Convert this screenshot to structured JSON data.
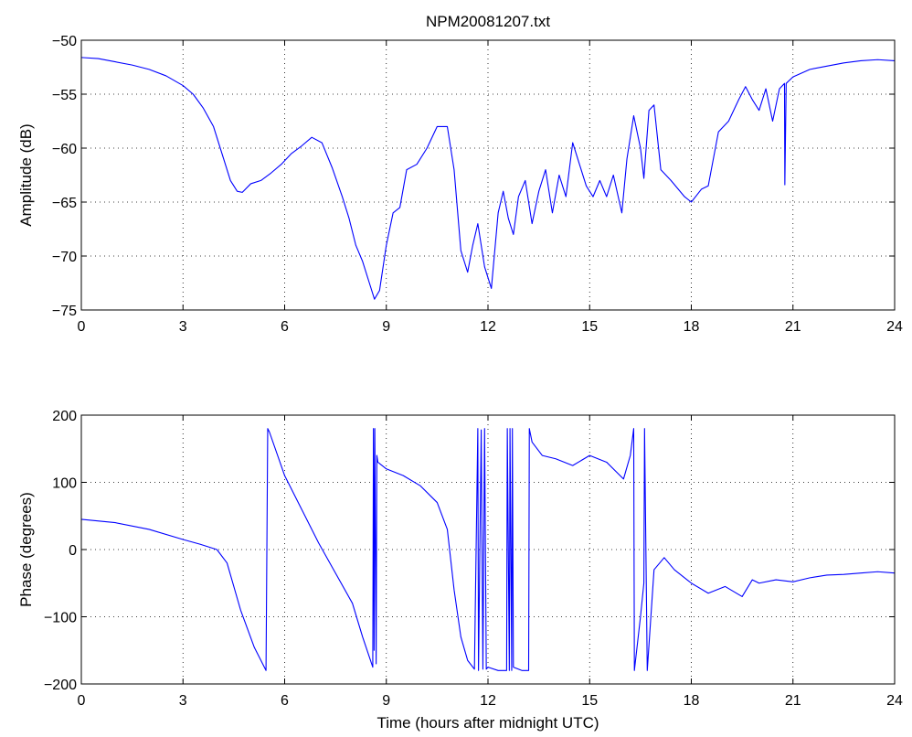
{
  "title": "NPM20081207.txt",
  "chart_data": [
    {
      "type": "line",
      "title": "NPM20081207.txt",
      "xlabel": "",
      "ylabel": "Amplitude (dB)",
      "xlim": [
        0,
        24
      ],
      "ylim": [
        -75,
        -50
      ],
      "xticks": [
        0,
        3,
        6,
        9,
        12,
        15,
        18,
        21,
        24
      ],
      "yticks": [
        -75,
        -70,
        -65,
        -60,
        -55,
        -50
      ],
      "grid": true,
      "line_color": "#0000ff",
      "series": [
        {
          "x": [
            0,
            0.5,
            1,
            1.5,
            2,
            2.5,
            3,
            3.3,
            3.6,
            3.9,
            4.2,
            4.4,
            4.6,
            4.75,
            5,
            5.3,
            5.6,
            5.9,
            6.2,
            6.5,
            6.8,
            7.1,
            7.4,
            7.7,
            7.9,
            8.1,
            8.3,
            8.5,
            8.65,
            8.8,
            9,
            9.2,
            9.4,
            9.6,
            9.9,
            10.2,
            10.5,
            10.8,
            11,
            11.2,
            11.4,
            11.55,
            11.7,
            11.9,
            12.1,
            12.3,
            12.45,
            12.6,
            12.75,
            12.9,
            13.1,
            13.3,
            13.5,
            13.7,
            13.9,
            14.1,
            14.3,
            14.5,
            14.7,
            14.9,
            15.1,
            15.3,
            15.5,
            15.7,
            15.95,
            16.1,
            16.3,
            16.5,
            16.6,
            16.75,
            16.9,
            17.1,
            17.4,
            17.8,
            18,
            18.3,
            18.5,
            18.8,
            19.1,
            19.4,
            19.6,
            19.8,
            20,
            20.2,
            20.4,
            20.6,
            20.75,
            20.76,
            20.8,
            21,
            21.5,
            22,
            22.5,
            23,
            23.5,
            24
          ],
          "y": [
            -51.6,
            -51.7,
            -52,
            -52.3,
            -52.7,
            -53.3,
            -54.2,
            -55,
            -56.3,
            -58,
            -61,
            -63,
            -64,
            -64.1,
            -63.3,
            -63,
            -62.3,
            -61.5,
            -60.5,
            -59.8,
            -59,
            -59.5,
            -61.8,
            -64.5,
            -66.5,
            -69,
            -70.5,
            -72.5,
            -74,
            -73.2,
            -69,
            -66,
            -65.5,
            -62,
            -61.5,
            -60,
            -58,
            -58,
            -62,
            -69.5,
            -71.5,
            -69,
            -67,
            -71,
            -73,
            -66,
            -64,
            -66.5,
            -68,
            -64.5,
            -63,
            -67,
            -64,
            -62,
            -66,
            -62.5,
            -64.5,
            -59.5,
            -61.5,
            -63.5,
            -64.5,
            -63,
            -64.5,
            -62.5,
            -66,
            -61,
            -57,
            -60,
            -62.8,
            -56.5,
            -56,
            -62,
            -63,
            -64.5,
            -65,
            -63.8,
            -63.5,
            -58.5,
            -57.5,
            -55.5,
            -54.3,
            -55.5,
            -56.5,
            -54.5,
            -57.5,
            -54.5,
            -54,
            -63.4,
            -54,
            -53.4,
            -52.7,
            -52.4,
            -52.1,
            -51.9,
            -51.8,
            -51.9
          ]
        }
      ]
    },
    {
      "type": "line",
      "title": "",
      "xlabel": "Time (hours after midnight UTC)",
      "ylabel": "Phase (degrees)",
      "xlim": [
        0,
        24
      ],
      "ylim": [
        -200,
        200
      ],
      "xticks": [
        0,
        3,
        6,
        9,
        12,
        15,
        18,
        21,
        24
      ],
      "yticks": [
        -200,
        -100,
        0,
        100,
        200
      ],
      "grid": true,
      "line_color": "#0000ff",
      "series": [
        {
          "x": [
            0,
            1,
            2,
            3,
            3.5,
            4,
            4.3,
            4.7,
            5.1,
            5.45,
            5.5,
            5.55,
            6,
            6.5,
            7,
            7.5,
            8,
            8.3,
            8.5,
            8.6,
            8.62,
            8.64,
            8.66,
            8.7,
            8.72,
            8.75,
            9,
            9.5,
            10,
            10.5,
            10.8,
            11,
            11.2,
            11.4,
            11.6,
            11.7,
            11.72,
            11.8,
            11.85,
            11.9,
            11.95,
            12,
            12.3,
            12.55,
            12.57,
            12.63,
            12.65,
            12.7,
            12.72,
            12.75,
            13,
            13.2,
            13.22,
            13.3,
            13.6,
            14,
            14.5,
            15,
            15.5,
            16,
            16.2,
            16.3,
            16.32,
            16.5,
            16.6,
            16.62,
            16.7,
            16.9,
            17.2,
            17.5,
            18,
            18.5,
            19,
            19.5,
            19.8,
            20,
            20.5,
            21,
            21.5,
            22,
            22.5,
            23,
            23.5,
            24
          ],
          "y": [
            45,
            40,
            30,
            15,
            8,
            0,
            -20,
            -90,
            -145,
            -180,
            180,
            175,
            110,
            60,
            10,
            -35,
            -80,
            -130,
            -160,
            -175,
            180,
            -150,
            180,
            -170,
            140,
            130,
            120,
            110,
            95,
            70,
            30,
            -60,
            -130,
            -165,
            -178,
            180,
            -180,
            178,
            -178,
            180,
            -178,
            -175,
            -180,
            -180,
            180,
            -180,
            180,
            -180,
            180,
            -175,
            -180,
            -180,
            180,
            160,
            140,
            135,
            125,
            140,
            130,
            105,
            140,
            180,
            -180,
            -100,
            -50,
            180,
            -180,
            -30,
            -12,
            -30,
            -50,
            -65,
            -55,
            -70,
            -45,
            -50,
            -45,
            -48,
            -42,
            -38,
            -37,
            -35,
            -33,
            -35
          ]
        }
      ]
    }
  ]
}
